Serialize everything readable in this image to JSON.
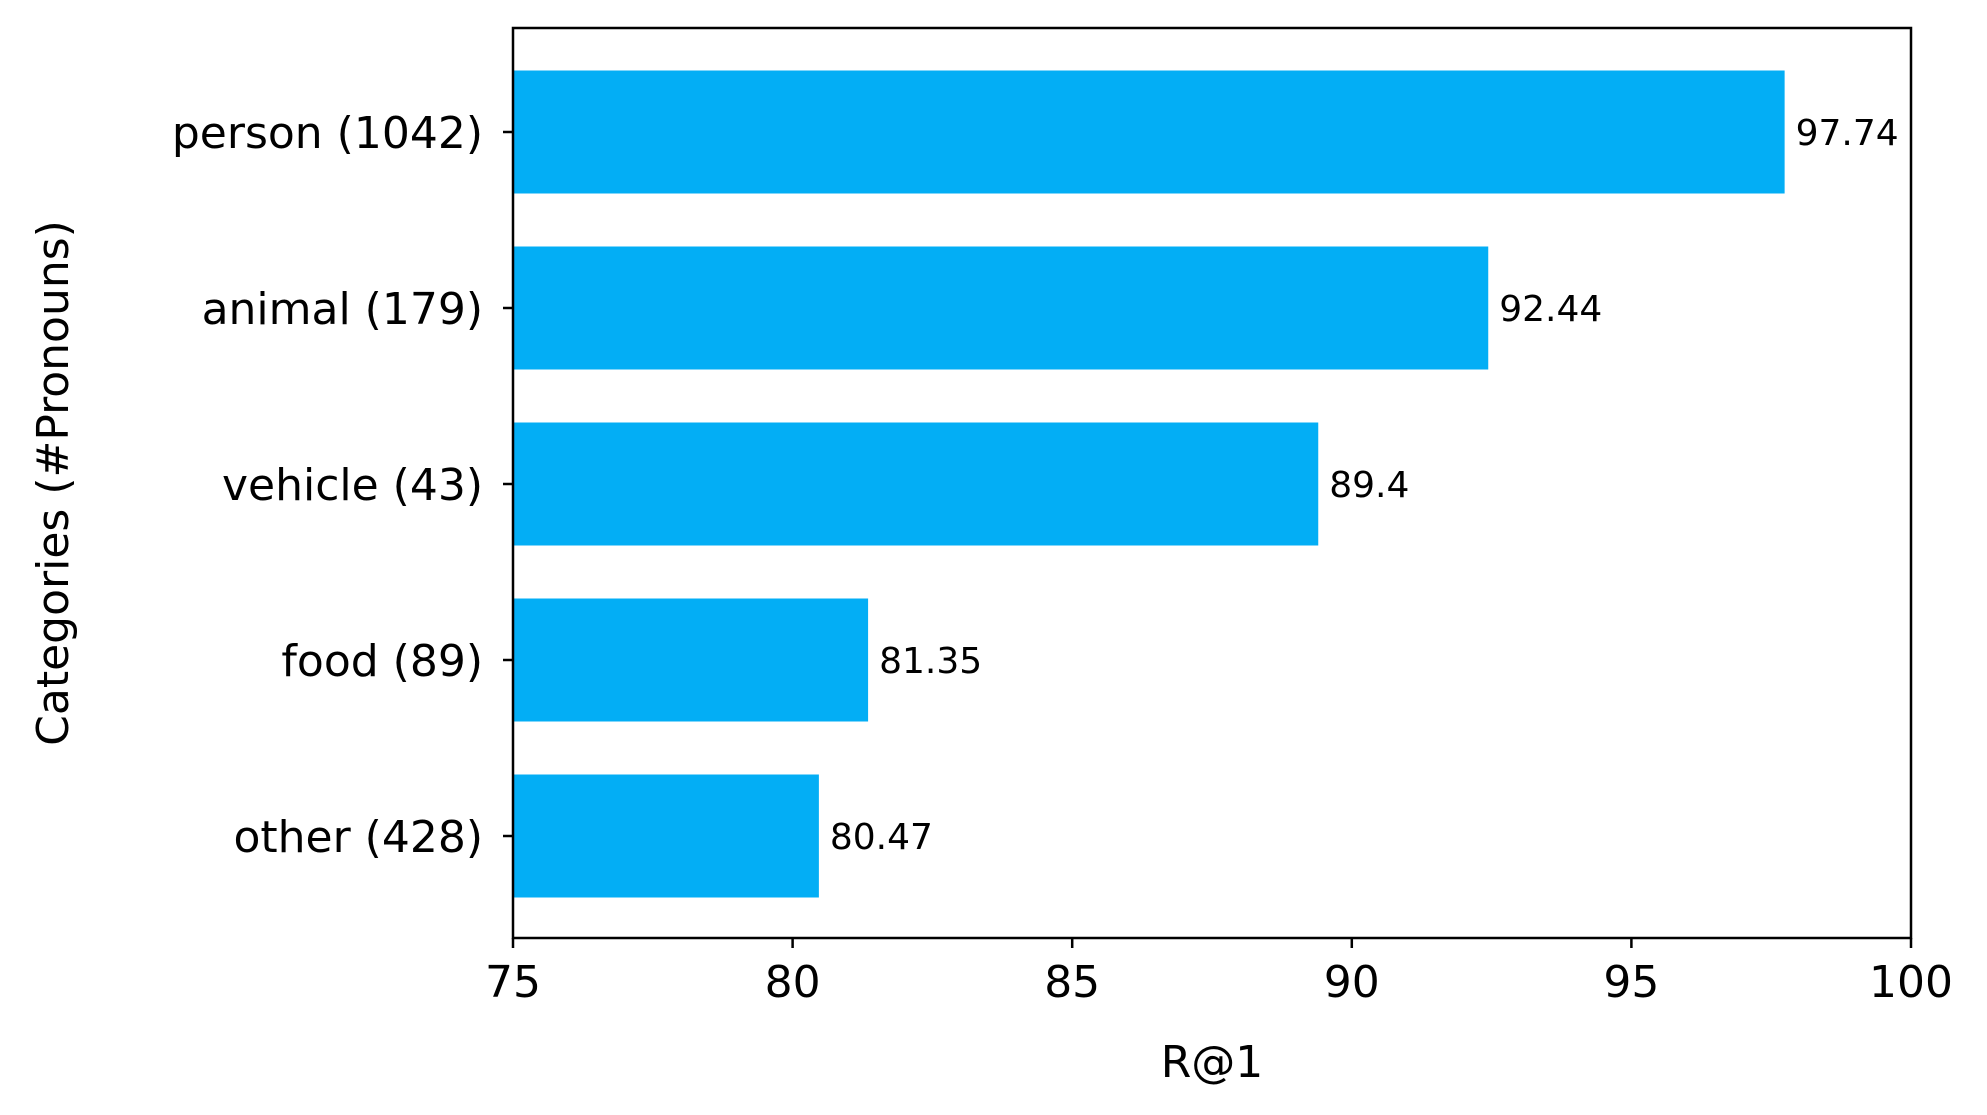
{
  "chart_data": {
    "type": "bar",
    "orientation": "horizontal",
    "categories": [
      "person (1042)",
      "animal (179)",
      "vehicle (43)",
      "food (89)",
      "other (428)"
    ],
    "values": [
      97.74,
      92.44,
      89.4,
      81.35,
      80.47
    ],
    "data_labels": [
      "97.74",
      "92.44",
      "89.4",
      "81.35",
      "80.47"
    ],
    "xlabel": "R@1",
    "ylabel": "Categories (#Pronouns)",
    "xlim": [
      75,
      100
    ],
    "xticks": [
      75,
      80,
      85,
      90,
      95,
      100
    ],
    "xtick_labels": [
      "75",
      "80",
      "85",
      "90",
      "95",
      "100"
    ],
    "bar_color": "#03AEF5",
    "grid": false,
    "legend": "none"
  }
}
